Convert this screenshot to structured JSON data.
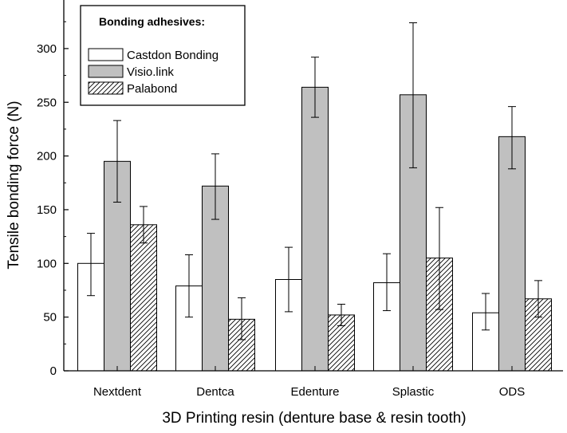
{
  "chart_data": {
    "type": "bar",
    "xlabel": "3D Printing resin (denture base & resin tooth)",
    "ylabel": "Tensile bonding force (N)",
    "ylim": [
      0,
      325
    ],
    "yticks": [
      0,
      50,
      100,
      150,
      200,
      250,
      300
    ],
    "categories": [
      "Nextdent",
      "Dentca",
      "Edenture",
      "Splastic",
      "ODS"
    ],
    "legend_title": "Bonding adhesives:",
    "legend_position": "top-left",
    "grid": false,
    "series": [
      {
        "name": "Castdon Bonding",
        "fill": "#ffffff",
        "pattern": "none",
        "values": [
          100,
          79,
          85,
          82,
          54
        ],
        "err_low": [
          70,
          50,
          55,
          56,
          38
        ],
        "err_high": [
          128,
          108,
          115,
          109,
          72
        ]
      },
      {
        "name": "Visio.link",
        "fill": "#c0c0c0",
        "pattern": "none",
        "values": [
          195,
          172,
          264,
          257,
          218
        ],
        "err_low": [
          157,
          141,
          236,
          189,
          188
        ],
        "err_high": [
          233,
          202,
          292,
          324,
          246
        ]
      },
      {
        "name": "Palabond",
        "fill": "#ffffff",
        "pattern": "hatch",
        "values": [
          136,
          48,
          52,
          105,
          67
        ],
        "err_low": [
          119,
          29,
          42,
          57,
          50
        ],
        "err_high": [
          153,
          68,
          62,
          152,
          84
        ]
      }
    ]
  }
}
